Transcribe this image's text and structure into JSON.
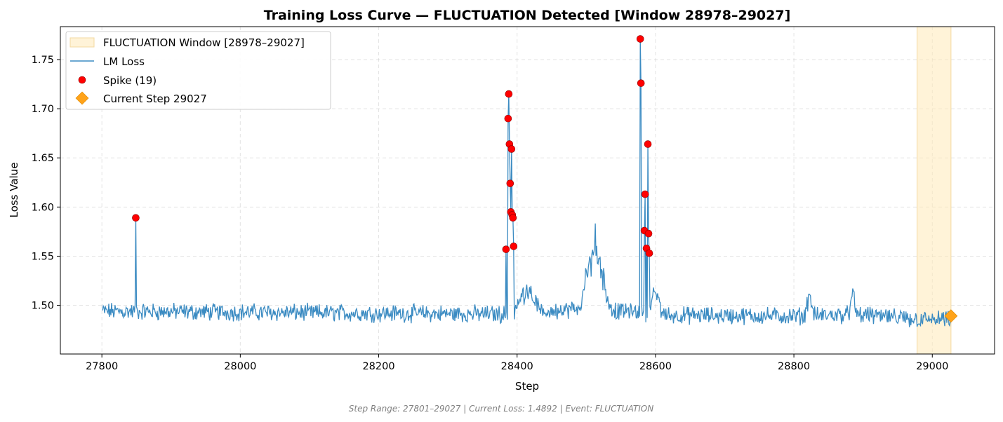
{
  "chart_data": {
    "type": "line",
    "title": "Training Loss Curve — FLUCTUATION Detected [Window 28978–29027]",
    "xlabel": "Step",
    "ylabel": "Loss Value",
    "xlim": [
      27740,
      29090
    ],
    "ylim": [
      1.4505,
      1.7835
    ],
    "x_ticks": [
      27800,
      28000,
      28200,
      28400,
      28600,
      28800,
      29000
    ],
    "y_ticks": [
      1.5,
      1.55,
      1.6,
      1.65,
      1.7,
      1.75
    ],
    "grid": true,
    "legend_position": "top-left",
    "legend": [
      {
        "key": "window",
        "label": "FLUCTUATION Window [28978–29027]"
      },
      {
        "key": "loss",
        "label": "LM Loss"
      },
      {
        "key": "spike",
        "label": "Spike (19)"
      },
      {
        "key": "current",
        "label": "Current Step 29027"
      }
    ],
    "window": {
      "start": 28978,
      "end": 29027,
      "color": "#ffe9b8"
    },
    "series": [
      {
        "name": "LM Loss",
        "color": "#3b8bc2",
        "step_range": [
          27801,
          29027
        ],
        "baseline_points": [
          [
            27801,
            1.494
          ],
          [
            28380,
            1.491
          ],
          [
            28420,
            1.492
          ],
          [
            28480,
            1.496
          ],
          [
            28560,
            1.494
          ],
          [
            28620,
            1.49
          ],
          [
            28800,
            1.489
          ],
          [
            28900,
            1.491
          ],
          [
            28960,
            1.486
          ],
          [
            29027,
            1.485
          ]
        ],
        "noise_amplitude": 0.007,
        "bumps": [
          {
            "from": 28395,
            "to": 28435,
            "peak": 1.52
          },
          {
            "from": 28490,
            "to": 28535,
            "peak": 1.565
          },
          {
            "from": 28590,
            "to": 28610,
            "peak": 1.515
          },
          {
            "from": 28815,
            "to": 28830,
            "peak": 1.513
          },
          {
            "from": 28880,
            "to": 28890,
            "peak": 1.512
          }
        ]
      }
    ],
    "spikes": [
      {
        "x": 27849,
        "y": 1.589
      },
      {
        "x": 28384,
        "y": 1.557
      },
      {
        "x": 28387,
        "y": 1.69
      },
      {
        "x": 28388,
        "y": 1.715
      },
      {
        "x": 28389,
        "y": 1.664
      },
      {
        "x": 28390,
        "y": 1.624
      },
      {
        "x": 28391,
        "y": 1.595
      },
      {
        "x": 28392,
        "y": 1.659
      },
      {
        "x": 28393,
        "y": 1.592
      },
      {
        "x": 28394,
        "y": 1.589
      },
      {
        "x": 28395,
        "y": 1.56
      },
      {
        "x": 28578,
        "y": 1.771
      },
      {
        "x": 28579,
        "y": 1.726
      },
      {
        "x": 28584,
        "y": 1.576
      },
      {
        "x": 28585,
        "y": 1.613
      },
      {
        "x": 28587,
        "y": 1.558
      },
      {
        "x": 28589,
        "y": 1.664
      },
      {
        "x": 28590,
        "y": 1.573
      },
      {
        "x": 28591,
        "y": 1.553
      }
    ],
    "spike_color": "#ff0000",
    "current": {
      "x": 29027,
      "y": 1.4892,
      "color": "#ffa31a"
    }
  },
  "footer": "Step Range: 27801–29027 | Current Loss: 1.4892 | Event: FLUCTUATION"
}
